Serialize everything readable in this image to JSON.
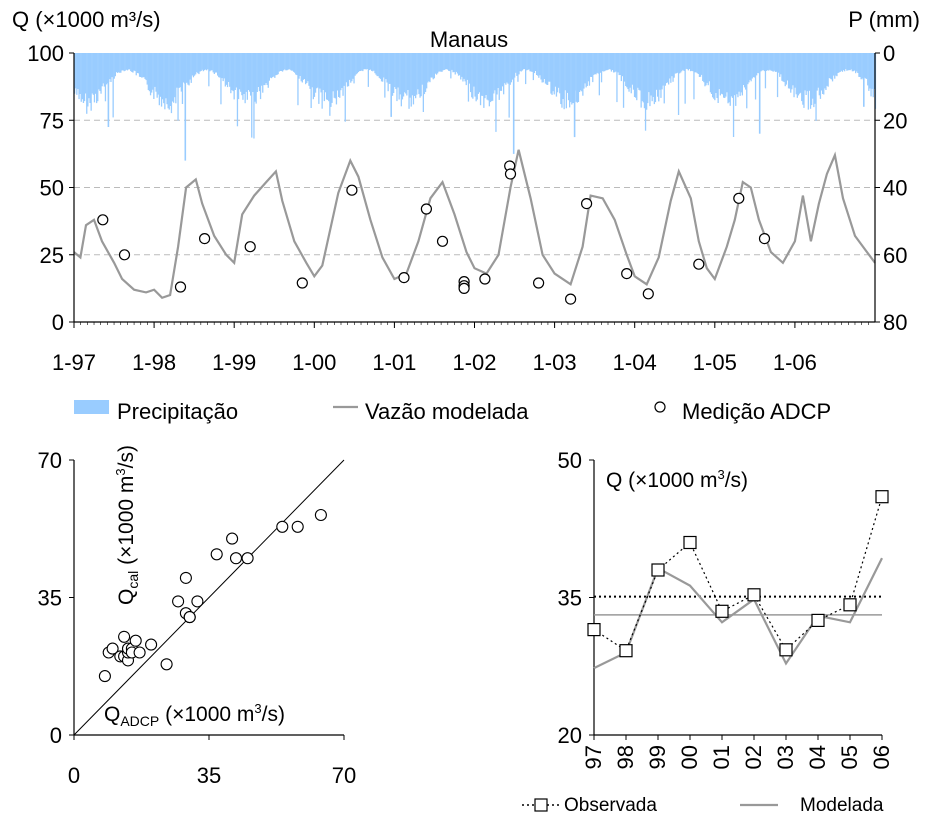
{
  "chart_data": [
    {
      "type": "line",
      "title": "Manaus",
      "ylabel_left": "Q (×1000 m³/s)",
      "ylabel_right": "P (mm)",
      "x_ticks": [
        "1-97",
        "1-98",
        "1-99",
        "1-00",
        "1-01",
        "1-02",
        "1-03",
        "1-04",
        "1-05",
        "1-06"
      ],
      "xlim": [
        1997.0,
        2007.0
      ],
      "ylim_left": [
        0,
        100
      ],
      "yticks_left": [
        "0",
        "25",
        "50",
        "75",
        "100"
      ],
      "ylim_right_inverted": [
        0,
        80
      ],
      "yticks_right": [
        "0",
        "20",
        "40",
        "60",
        "80"
      ],
      "grid": "horizontal dashed at 25, 50, 75",
      "legend_position": "below",
      "legend": [
        "Precipitação",
        "Vazão modelada",
        "Medição ADCP"
      ],
      "colors": {
        "precipitation": "#99ccff",
        "modelled": "#999999",
        "adcp": "#000000"
      },
      "series": [
        {
          "name": "Vazão modelada",
          "x": [
            1997.0,
            1997.08,
            1997.15,
            1997.25,
            1997.35,
            1997.5,
            1997.6,
            1997.75,
            1997.9,
            1998.0,
            1998.1,
            1998.2,
            1998.3,
            1998.4,
            1998.52,
            1998.6,
            1998.75,
            1998.9,
            1999.0,
            1999.1,
            1999.25,
            1999.4,
            1999.52,
            1999.6,
            1999.75,
            1999.9,
            2000.0,
            2000.1,
            2000.3,
            2000.45,
            2000.55,
            2000.7,
            2000.85,
            2001.0,
            2001.15,
            2001.3,
            2001.45,
            2001.6,
            2001.75,
            2001.9,
            2002.0,
            2002.15,
            2002.3,
            2002.45,
            2002.55,
            2002.7,
            2002.85,
            2003.0,
            2003.2,
            2003.35,
            2003.45,
            2003.6,
            2003.75,
            2003.9,
            2004.0,
            2004.15,
            2004.3,
            2004.45,
            2004.55,
            2004.7,
            2004.8,
            2004.9,
            2005.0,
            2005.15,
            2005.25,
            2005.35,
            2005.45,
            2005.55,
            2005.7,
            2005.85,
            2006.0,
            2006.1,
            2006.2,
            2006.3,
            2006.4,
            2006.5,
            2006.6,
            2006.75,
            2006.9,
            2007.0
          ],
          "y": [
            26,
            24,
            36,
            38,
            30,
            22,
            16,
            12,
            11,
            12,
            9,
            10,
            28,
            50,
            53,
            44,
            32,
            25,
            22,
            40,
            47,
            52,
            56,
            45,
            30,
            22,
            17,
            21,
            48,
            60,
            54,
            38,
            24,
            16,
            18,
            30,
            46,
            52,
            40,
            26,
            20,
            18,
            25,
            50,
            64,
            46,
            25,
            18,
            14,
            28,
            47,
            46,
            38,
            25,
            17,
            14,
            24,
            45,
            56,
            46,
            30,
            20,
            16,
            28,
            38,
            52,
            50,
            38,
            26,
            22,
            30,
            47,
            30,
            44,
            55,
            62,
            46,
            32,
            26,
            22
          ]
        },
        {
          "name": "Medição ADCP",
          "x": [
            1997.36,
            1997.63,
            1998.33,
            1998.63,
            1999.2,
            1999.85,
            2000.47,
            2001.12,
            2001.4,
            2001.6,
            2001.87,
            2001.87,
            2001.87,
            2002.13,
            2002.44,
            2002.45,
            2002.8,
            2003.2,
            2003.4,
            2003.9,
            2004.17,
            2004.8,
            2005.3,
            2005.62
          ],
          "y": [
            38,
            25,
            13,
            31,
            28,
            14.5,
            49,
            16.5,
            42,
            30,
            15,
            13.5,
            12.5,
            16,
            58,
            55,
            14.5,
            8.5,
            44,
            18,
            10.5,
            21.5,
            46,
            31
          ]
        },
        {
          "name": "Precipitação",
          "description": "daily rainfall, right axis inverted 0-80 mm"
        }
      ]
    },
    {
      "type": "scatter",
      "xlabel": "Q_ADCP (×1000 m³/s)",
      "ylabel": "Q_cal (×1000 m³/s)",
      "xlim": [
        0,
        70
      ],
      "ylim": [
        0,
        70
      ],
      "xticks": [
        "0",
        "35",
        "70"
      ],
      "yticks": [
        "0",
        "35",
        "70"
      ],
      "reference_line": "1:1",
      "x": [
        8,
        9,
        10,
        12,
        13,
        13,
        14,
        14,
        14,
        15,
        15,
        16,
        17,
        20,
        24,
        27,
        29,
        29,
        30,
        30,
        32,
        37,
        41,
        42,
        45,
        54,
        58,
        64
      ],
      "y": [
        15,
        21,
        22,
        20,
        20,
        25,
        19,
        21,
        22,
        22,
        21,
        24,
        21,
        23,
        18,
        34,
        40,
        31,
        30,
        30,
        34,
        46,
        50,
        45,
        45,
        53,
        53,
        56
      ]
    },
    {
      "type": "line",
      "title": "Q (×1000 m³/s)",
      "categories": [
        "97",
        "98",
        "99",
        "00",
        "01",
        "02",
        "03",
        "04",
        "05",
        "06"
      ],
      "ylim": [
        20,
        50
      ],
      "yticks": [
        "20",
        "35",
        "50"
      ],
      "legend_position": "bottom",
      "series": [
        {
          "name": "Observada",
          "values": [
            31.5,
            29.2,
            38.0,
            41.0,
            33.5,
            35.3,
            29.3,
            32.5,
            34.2,
            46.0
          ]
        },
        {
          "name": "Modelada",
          "values": [
            27.3,
            29.0,
            38.2,
            36.3,
            32.3,
            34.8,
            27.8,
            33.0,
            32.3,
            39.3
          ]
        }
      ],
      "mean_lines": [
        {
          "name": "Observada",
          "value": 35.1,
          "style": "dotted"
        },
        {
          "name": "Modelada",
          "value": 33.1,
          "style": "solid"
        }
      ]
    }
  ]
}
